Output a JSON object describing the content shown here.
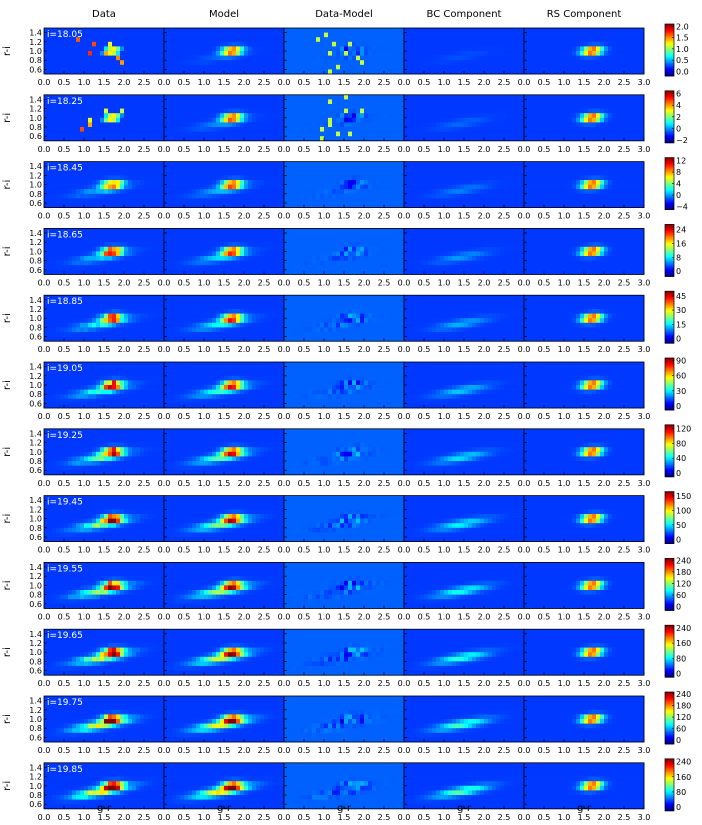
{
  "columns": [
    "Data",
    "Model",
    "Data-Model",
    "BC Component",
    "RS Component"
  ],
  "ylabel": "r-i",
  "xlabel": "g-r",
  "yticks": [
    "1.4",
    "1.2",
    "1.0",
    "0.8",
    "0.6"
  ],
  "xticks_first": [
    "0.0",
    "0.5",
    "1.0",
    "1.5",
    "2.0",
    "2.5"
  ],
  "xticks_last": [
    "0.0",
    "0.5",
    "1.0",
    "1.5",
    "2.0",
    "2.5",
    "3.0"
  ],
  "rows": [
    {
      "label": "i=18.05",
      "cbar": [
        "2.0",
        "1.5",
        "1.0",
        "0.5",
        "0.0"
      ]
    },
    {
      "label": "i=18.25",
      "cbar": [
        "6",
        "4",
        "2",
        "0",
        "−2"
      ]
    },
    {
      "label": "i=18.45",
      "cbar": [
        "12",
        "8",
        "4",
        "0",
        "−4"
      ]
    },
    {
      "label": "i=18.65",
      "cbar": [
        "24",
        "16",
        "8",
        "0"
      ]
    },
    {
      "label": "i=18.85",
      "cbar": [
        "45",
        "30",
        "15",
        "0"
      ]
    },
    {
      "label": "i=19.05",
      "cbar": [
        "90",
        "60",
        "30",
        "0"
      ]
    },
    {
      "label": "i=19.25",
      "cbar": [
        "120",
        "80",
        "40",
        "0"
      ]
    },
    {
      "label": "i=19.45",
      "cbar": [
        "150",
        "100",
        "50",
        "0"
      ]
    },
    {
      "label": "i=19.55",
      "cbar": [
        "240",
        "180",
        "120",
        "60",
        "0"
      ]
    },
    {
      "label": "i=19.65",
      "cbar": [
        "240",
        "160",
        "80",
        "0"
      ]
    },
    {
      "label": "i=19.75",
      "cbar": [
        "240",
        "180",
        "120",
        "60",
        "0"
      ]
    },
    {
      "label": "i=19.85",
      "cbar": [
        "240",
        "160",
        "80",
        "0"
      ]
    }
  ],
  "chart_data": {
    "type": "heatmap",
    "panels": "12 magnitude bins (rows) x 5 components (columns)",
    "xlabel": "g-r",
    "ylabel": "r-i",
    "xlim": [
      0.0,
      3.0
    ],
    "ylim": [
      0.5,
      1.5
    ],
    "colormap": "jet",
    "row_labels": [
      "i=18.05",
      "i=18.25",
      "i=18.45",
      "i=18.65",
      "i=18.85",
      "i=19.05",
      "i=19.25",
      "i=19.45",
      "i=19.55",
      "i=19.65",
      "i=19.75",
      "i=19.85"
    ],
    "column_titles": [
      "Data",
      "Model",
      "Data-Model",
      "BC Component",
      "RS Component"
    ],
    "red_sequence_peak": {
      "g-r": 1.7,
      "r-i": 1.0
    },
    "colorbar_ranges": [
      [
        -0.2,
        2.1
      ],
      [
        -2.5,
        6.5
      ],
      [
        -5,
        13
      ],
      [
        -3,
        27
      ],
      [
        -5,
        50
      ],
      [
        -8,
        95
      ],
      [
        -10,
        130
      ],
      [
        -15,
        165
      ],
      [
        -20,
        250
      ],
      [
        -20,
        255
      ],
      [
        -20,
        250
      ],
      [
        -20,
        255
      ]
    ]
  }
}
